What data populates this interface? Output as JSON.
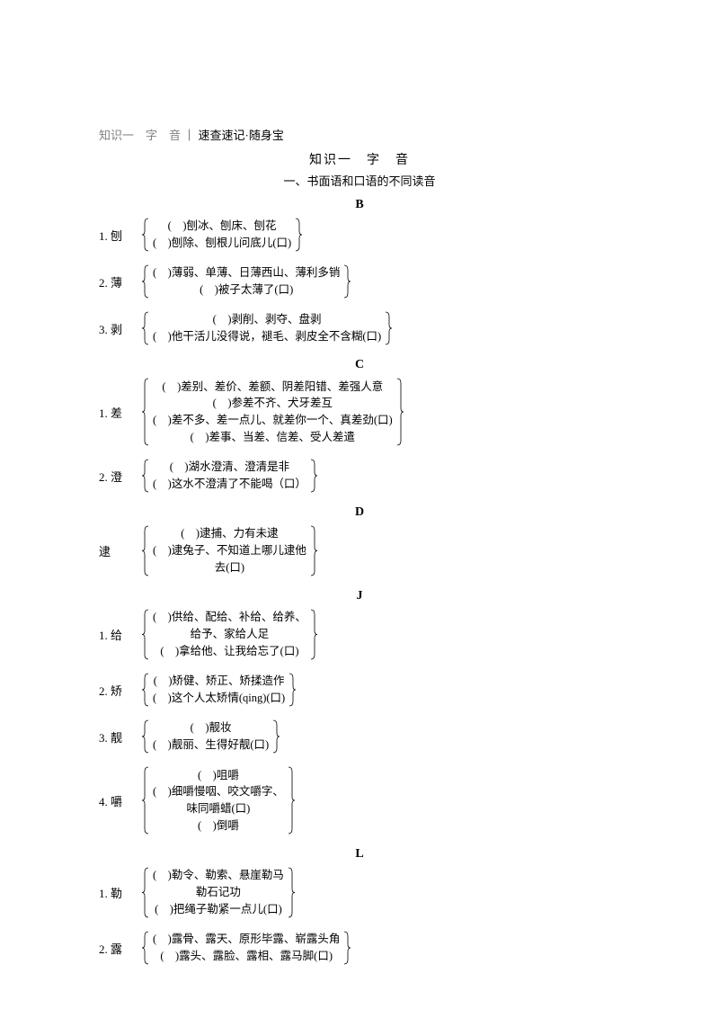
{
  "header": {
    "left_gray": "知识一　字　音",
    "divider": "｜",
    "right": "速查速记·随身宝"
  },
  "title": "知识一　字　音",
  "subtitle": "一、书面语和口语的不同读音",
  "sections": [
    {
      "letter": "B",
      "entries": [
        {
          "num": "1.",
          "char": "刨",
          "lines": [
            "(　)刨冰、刨床、刨花",
            "(　)刨除、刨根儿问底儿(口)"
          ]
        },
        {
          "num": "2.",
          "char": "薄",
          "lines": [
            "(　)薄弱、单薄、日薄西山、薄利多销",
            "(　)被子太薄了(口)"
          ]
        },
        {
          "num": "3.",
          "char": "剥",
          "lines": [
            "(　)剥削、剥夺、盘剥",
            "(　)他干活儿没得说，褪毛、剥皮全不含糊(口)"
          ]
        }
      ]
    },
    {
      "letter": "C",
      "entries": [
        {
          "num": "1.",
          "char": "差",
          "lines": [
            "(　)差别、差价、差额、阴差阳错、差强人意",
            "(　)参差不齐、犬牙差互",
            "(　)差不多、差一点儿、就差你一个、真差劲(口)",
            "(　)差事、当差、信差、受人差遣"
          ]
        },
        {
          "num": "2.",
          "char": "澄",
          "lines": [
            "(　)湖水澄清、澄清是非",
            "(　)这水不澄清了不能喝（口）"
          ]
        }
      ]
    },
    {
      "letter": "D",
      "entries": [
        {
          "num": "",
          "char": "逮",
          "lines": [
            "(　)逮捕、力有未逮",
            "(　)逮兔子、不知道上哪儿逮他",
            "去(口)"
          ]
        }
      ]
    },
    {
      "letter": "J",
      "entries": [
        {
          "num": "1.",
          "char": "给",
          "lines": [
            "(　)供给、配给、补给、给养、",
            "给予、家给人足",
            "(　)拿给他、让我给忘了(口)"
          ]
        },
        {
          "num": "2.",
          "char": "矫",
          "lines": [
            "(　)矫健、矫正、矫揉造作",
            "(　)这个人太矫情(qing)(口)"
          ]
        },
        {
          "num": "3.",
          "char": "靓",
          "lines": [
            "(　)靓妆",
            "(　)靓丽、生得好靓(口)"
          ]
        },
        {
          "num": "4.",
          "char": "嚼",
          "lines": [
            "(　)咀嚼",
            "(　)细嚼慢咽、咬文嚼字、",
            "味同嚼蜡(口)",
            "(　)倒嚼"
          ]
        }
      ]
    },
    {
      "letter": "L",
      "entries": [
        {
          "num": "1.",
          "char": "勒",
          "lines": [
            "(　)勒令、勒索、悬崖勒马",
            "勒石记功",
            "(　)把绳子勒紧一点儿(口)"
          ]
        },
        {
          "num": "2.",
          "char": "露",
          "lines": [
            "(　)露骨、露天、原形毕露、崭露头角",
            "(　)露头、露脸、露相、露马脚(口)"
          ]
        }
      ]
    }
  ]
}
